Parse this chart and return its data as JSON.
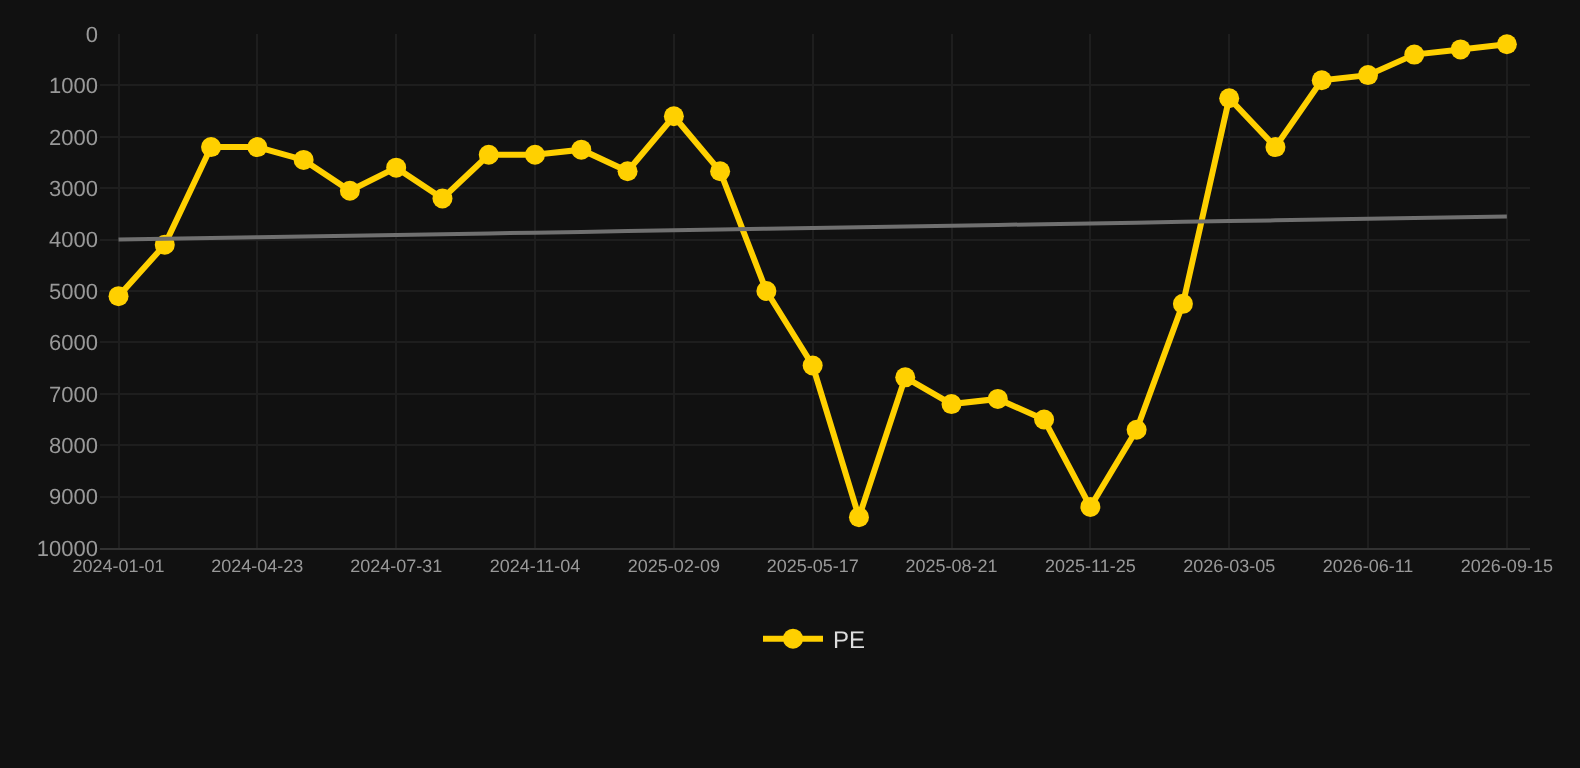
{
  "chart_data": {
    "type": "line",
    "categories": [
      "2024-01-01",
      null,
      null,
      "2024-04-23",
      null,
      null,
      "2024-07-31",
      null,
      null,
      "2024-11-04",
      null,
      null,
      "2025-02-09",
      null,
      null,
      "2025-05-17",
      null,
      null,
      "2025-08-21",
      null,
      null,
      "2025-11-25",
      null,
      null,
      "2026-03-05",
      null,
      null,
      "2026-06-11",
      null,
      null,
      "2026-09-15"
    ],
    "series": [
      {
        "name": "PE",
        "color": "#ffd000",
        "marker": "circle",
        "values": [
          5100,
          4100,
          2200,
          2200,
          2450,
          3050,
          2600,
          3200,
          2350,
          2350,
          2250,
          2670,
          1600,
          2670,
          5000,
          6450,
          9400,
          6680,
          7200,
          7100,
          7500,
          9200,
          7700,
          5250,
          1250,
          2200,
          900,
          800,
          400,
          300,
          200
        ]
      },
      {
        "color": "#707070",
        "marker": "none",
        "values": [
          4000,
          3985,
          3970,
          3955,
          3940,
          3925,
          3910,
          3895,
          3880,
          3865,
          3850,
          3835,
          3820,
          3805,
          3790,
          3775,
          3760,
          3745,
          3730,
          3715,
          3700,
          3685,
          3670,
          3655,
          3640,
          3625,
          3610,
          3595,
          3580,
          3565,
          3550
        ]
      }
    ],
    "ylim": [
      10000,
      0
    ],
    "yticks": [
      0,
      1000,
      2000,
      3000,
      4000,
      5000,
      6000,
      7000,
      8000,
      9000,
      10000
    ],
    "grid": true,
    "legend": "bottom"
  }
}
